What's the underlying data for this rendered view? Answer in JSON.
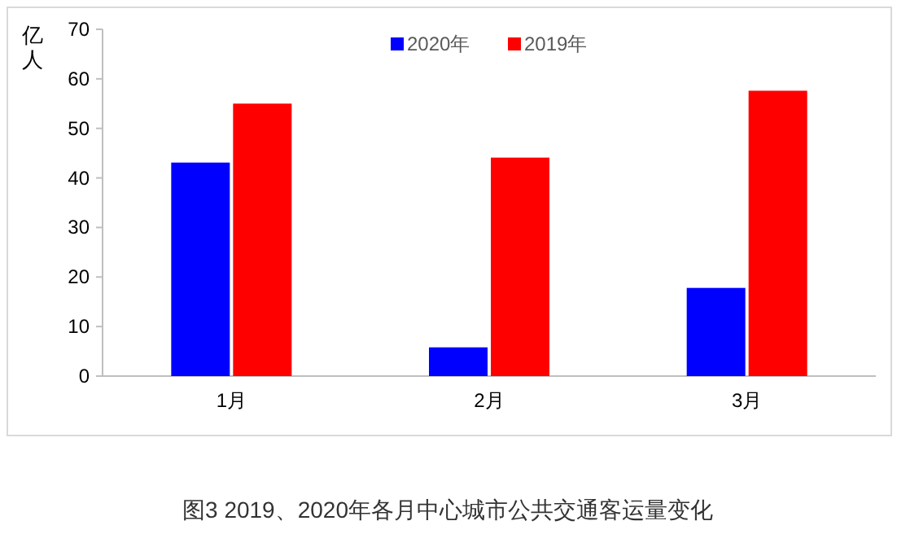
{
  "chart_data": {
    "type": "bar",
    "title": "图3 2019、2020年各月中心城市公共交通客运量变化",
    "ylabel": "亿人",
    "categories": [
      "1月",
      "2月",
      "3月"
    ],
    "series": [
      {
        "name": "2020年",
        "color": "#0000ff",
        "values": [
          43.1,
          5.8,
          17.8
        ]
      },
      {
        "name": "2019年",
        "color": "#ff0000",
        "values": [
          55.0,
          44.1,
          57.6
        ]
      }
    ],
    "ylim": [
      0,
      70
    ],
    "yticks": [
      0,
      10,
      20,
      30,
      40,
      50,
      60,
      70
    ],
    "legend": "top",
    "grid": false
  }
}
